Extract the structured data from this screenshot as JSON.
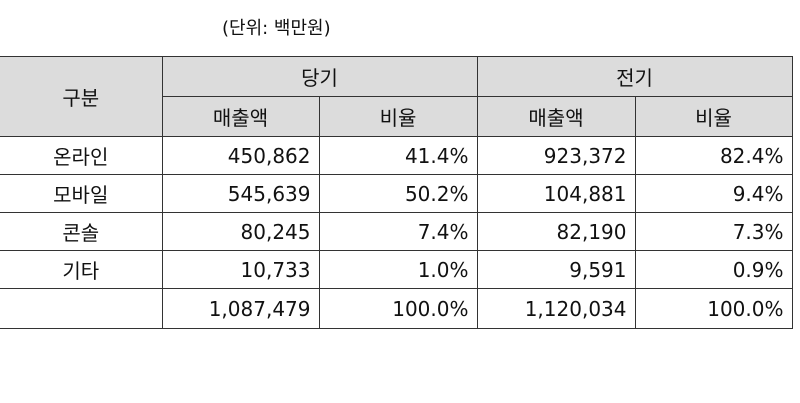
{
  "unit_note": "(단위: 백만원)",
  "table": {
    "header": {
      "category": "구분",
      "period_current": "당기",
      "period_prior": "전기",
      "sales": "매출액",
      "ratio": "비율"
    },
    "rows": [
      {
        "category": "온라인",
        "current_sales": "450,862",
        "current_ratio": "41.4%",
        "prior_sales": "923,372",
        "prior_ratio": "82.4%"
      },
      {
        "category": "모바일",
        "current_sales": "545,639",
        "current_ratio": "50.2%",
        "prior_sales": "104,881",
        "prior_ratio": "9.4%"
      },
      {
        "category": "콘솔",
        "current_sales": "80,245",
        "current_ratio": "7.4%",
        "prior_sales": "82,190",
        "prior_ratio": "7.3%"
      },
      {
        "category": "기타",
        "current_sales": "10,733",
        "current_ratio": "1.0%",
        "prior_sales": "9,591",
        "prior_ratio": "0.9%"
      }
    ],
    "total": {
      "category": "",
      "current_sales": "1,087,479",
      "current_ratio": "100.0%",
      "prior_sales": "1,120,034",
      "prior_ratio": "100.0%"
    }
  },
  "colors": {
    "header_background": "#dcdcdc",
    "border": "#333333"
  }
}
